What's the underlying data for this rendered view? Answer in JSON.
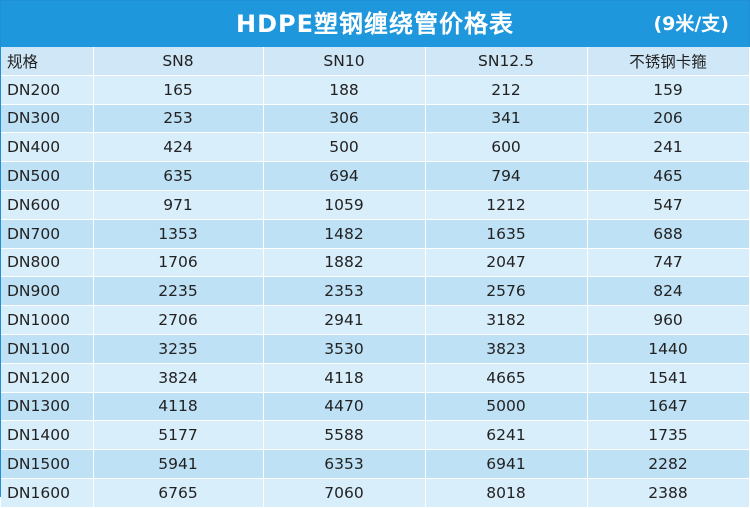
{
  "header": {
    "title": "HDPE塑钢缠绕管价格表",
    "unit": "(9米/支)"
  },
  "table": {
    "columns": [
      "规格",
      "SN8",
      "SN10",
      "SN12.5",
      "不锈钢卡箍"
    ],
    "rows": [
      [
        "DN200",
        "165",
        "188",
        "212",
        "159"
      ],
      [
        "DN300",
        "253",
        "306",
        "341",
        "206"
      ],
      [
        "DN400",
        "424",
        "500",
        "600",
        "241"
      ],
      [
        "DN500",
        "635",
        "694",
        "794",
        "465"
      ],
      [
        "DN600",
        "971",
        "1059",
        "1212",
        "547"
      ],
      [
        "DN700",
        "1353",
        "1482",
        "1635",
        "688"
      ],
      [
        "DN800",
        "1706",
        "1882",
        "2047",
        "747"
      ],
      [
        "DN900",
        "2235",
        "2353",
        "2576",
        "824"
      ],
      [
        "DN1000",
        "2706",
        "2941",
        "3182",
        "960"
      ],
      [
        "DN1100",
        "3235",
        "3530",
        "3823",
        "1440"
      ],
      [
        "DN1200",
        "3824",
        "4118",
        "4665",
        "1541"
      ],
      [
        "DN1300",
        "4118",
        "4470",
        "5000",
        "1647"
      ],
      [
        "DN1400",
        "5177",
        "5588",
        "6241",
        "1735"
      ],
      [
        "DN1500",
        "5941",
        "6353",
        "6941",
        "2282"
      ],
      [
        "DN1600",
        "6765",
        "7060",
        "8018",
        "2388"
      ]
    ]
  },
  "colors": {
    "title_bar": "#1f97dc",
    "header_row": "#cfe7f7",
    "row_light": "#d9eefb",
    "row_dark": "#bfe1f6"
  }
}
